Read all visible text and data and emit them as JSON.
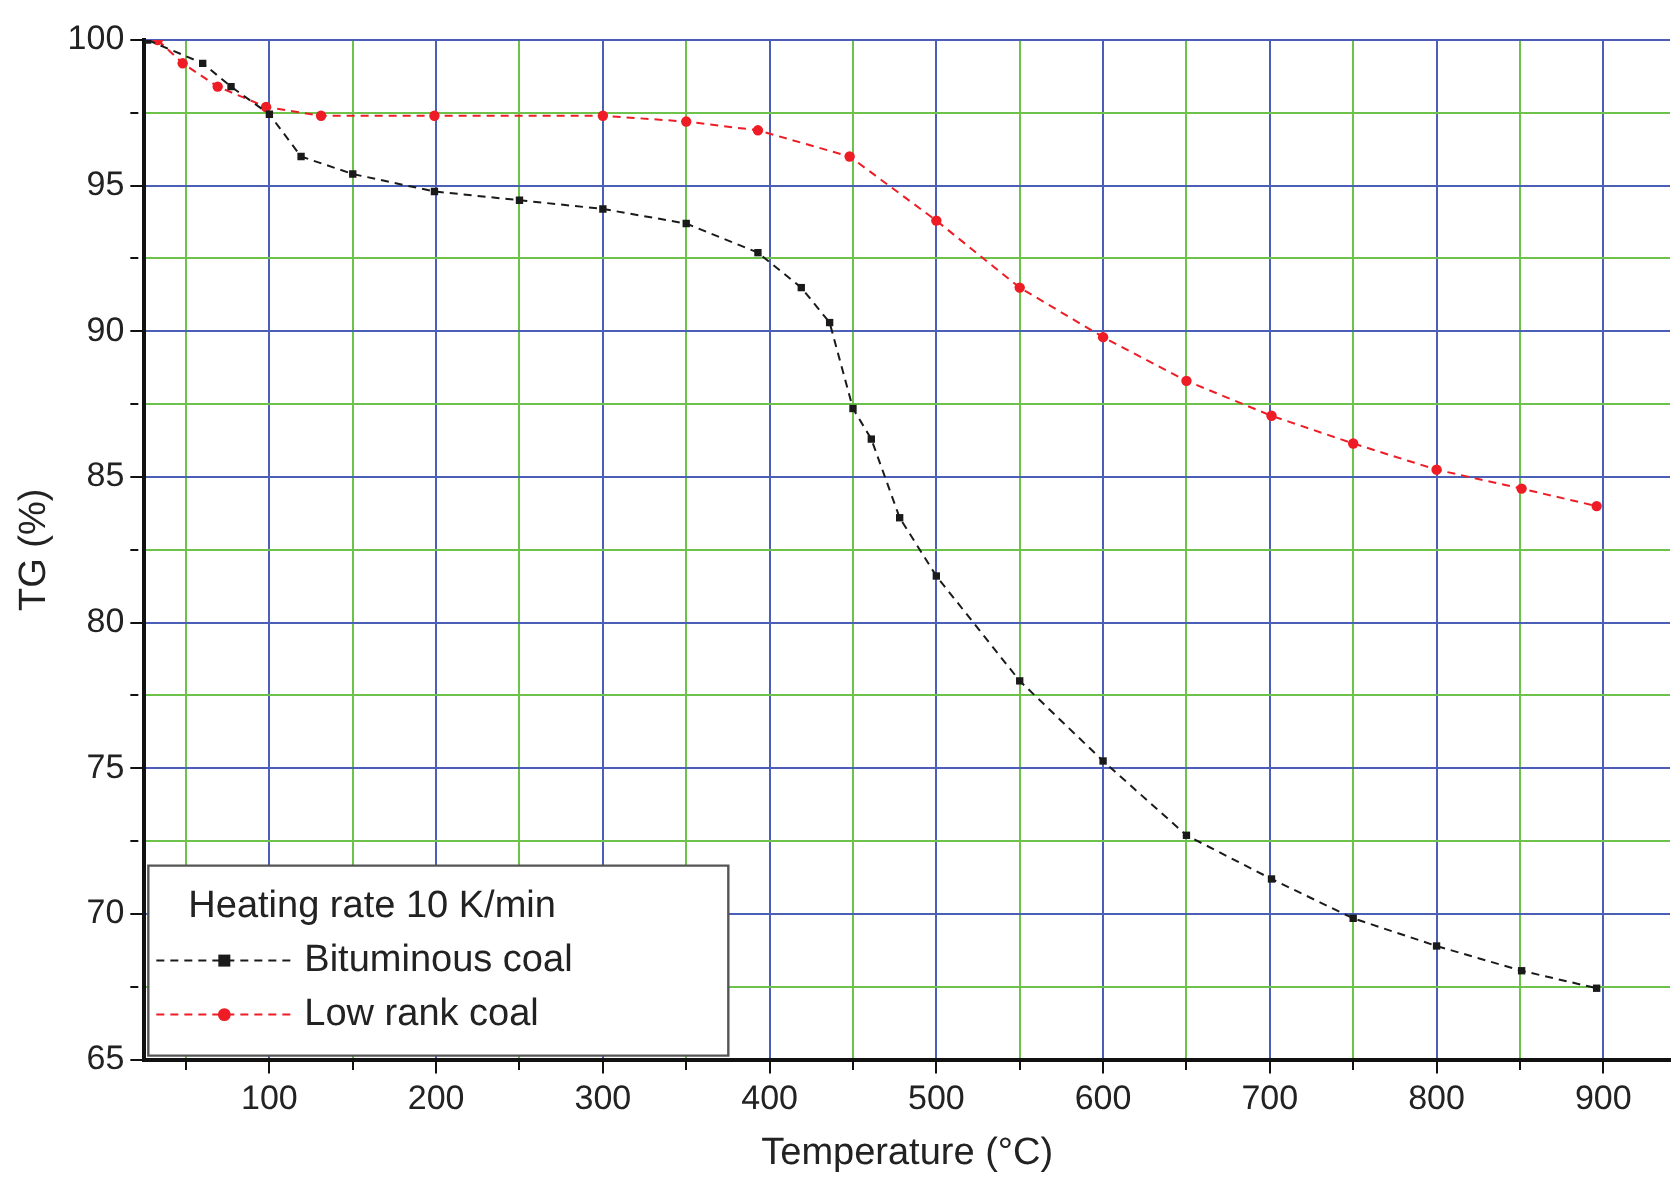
{
  "chart_data": {
    "type": "line",
    "xlabel": "Temperature (°C)",
    "ylabel": "TG (%)",
    "legend_title": "Heating rate 10 K/min",
    "legend": "bottom left",
    "grid": true,
    "line_style": "dashed",
    "xlim": [
      25,
      940
    ],
    "xticks": [
      {
        "value": 50,
        "label": null
      },
      100,
      {
        "value": 150,
        "label": null
      },
      200,
      {
        "value": 250,
        "label": null
      },
      300,
      {
        "value": 350,
        "label": null
      },
      400,
      {
        "value": 450,
        "label": null
      },
      500,
      {
        "value": 550,
        "label": null
      },
      600,
      {
        "value": 650,
        "label": null
      },
      700,
      {
        "value": 750,
        "label": null
      },
      800,
      {
        "value": 850,
        "label": null
      },
      900
    ],
    "ylim": [
      65,
      100
    ],
    "yticks": [
      65,
      {
        "value": 67.5,
        "label": null
      },
      70,
      {
        "value": 72.5,
        "label": null
      },
      75,
      {
        "value": 77.5,
        "label": null
      },
      80,
      {
        "value": 82.5,
        "label": null
      },
      85,
      {
        "value": 87.5,
        "label": null
      },
      90,
      {
        "value": 92.5,
        "label": null
      },
      95,
      {
        "value": 97.5,
        "label": null
      },
      100
    ],
    "series": [
      {
        "name": "Bituminous coal",
        "color": "#1a1a1a",
        "marker": "square",
        "x": [
          27,
          60,
          77,
          100,
          119,
          150,
          199,
          250,
          300,
          350,
          393,
          419,
          436,
          450,
          461,
          478,
          500,
          550,
          600,
          650,
          701,
          750,
          800,
          851,
          896
        ],
        "values": [
          100,
          99.2,
          98.4,
          97.45,
          96.0,
          95.4,
          94.8,
          94.5,
          94.2,
          93.7,
          92.7,
          91.5,
          90.3,
          87.35,
          86.3,
          83.6,
          81.6,
          78.0,
          75.25,
          72.7,
          71.2,
          69.85,
          68.9,
          68.05,
          67.45
        ]
      },
      {
        "name": "Low rank coal",
        "color": "#ee1c25",
        "marker": "circle",
        "x": [
          33,
          48,
          69,
          98,
          131,
          199,
          300,
          350,
          393,
          448,
          500,
          550,
          600,
          650,
          701,
          750,
          800,
          851,
          896
        ],
        "values": [
          100,
          99.2,
          98.4,
          97.7,
          97.4,
          97.4,
          97.4,
          97.2,
          96.9,
          96.0,
          93.8,
          91.5,
          89.8,
          88.3,
          87.1,
          86.15,
          85.25,
          84.6,
          84.0
        ]
      }
    ]
  }
}
